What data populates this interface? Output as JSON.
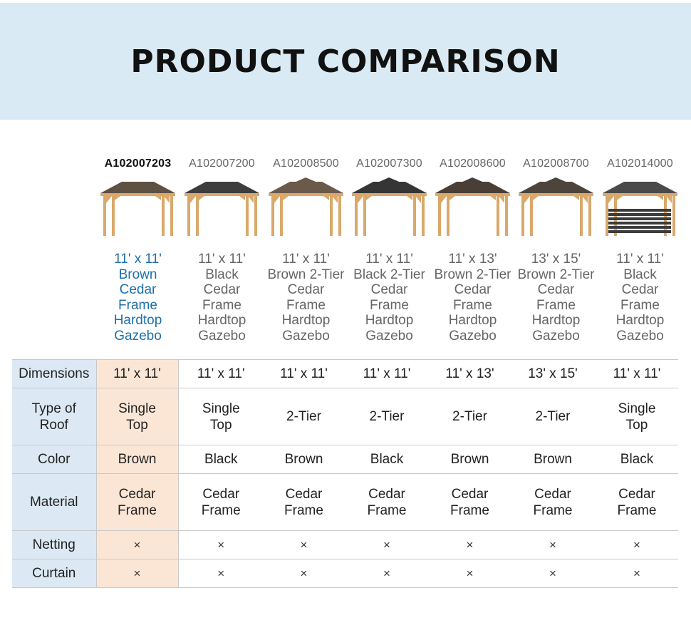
{
  "header": {
    "title": "PRODUCT COMPARISON"
  },
  "products": [
    {
      "sku": "A102007203",
      "name": [
        "11' x 11'",
        "Brown",
        "Cedar",
        "Frame",
        "Hardtop",
        "Gazebo"
      ],
      "roof": "#5e5043",
      "tier": 1
    },
    {
      "sku": "A102007200",
      "name": [
        "11' x 11'",
        "Black",
        "Cedar",
        "Frame",
        "Hardtop",
        "Gazebo"
      ],
      "roof": "#3d3d3d",
      "tier": 1
    },
    {
      "sku": "A102008500",
      "name": [
        "11' x 11'",
        "Brown 2-Tier",
        "Cedar",
        "Frame",
        "Hardtop",
        "Gazebo"
      ],
      "roof": "#6b5a49",
      "tier": 2
    },
    {
      "sku": "A102007300",
      "name": [
        "11' x 11'",
        "Black 2-Tier",
        "Cedar",
        "Frame",
        "Hardtop",
        "Gazebo"
      ],
      "roof": "#353535",
      "tier": 2
    },
    {
      "sku": "A102008600",
      "name": [
        "11' x 13'",
        "Brown 2-Tier",
        "Cedar",
        "Frame",
        "Hardtop",
        "Gazebo"
      ],
      "roof": "#4a3f36",
      "tier": 2
    },
    {
      "sku": "A102008700",
      "name": [
        "13' x 15'",
        "Brown 2-Tier",
        "Cedar",
        "Frame",
        "Hardtop",
        "Gazebo"
      ],
      "roof": "#4d443b",
      "tier": 2
    },
    {
      "sku": "A102014000",
      "name": [
        "11' x 11'",
        "Black",
        "Cedar",
        "Frame",
        "Hardtop",
        "Gazebo"
      ],
      "roof": "#4a4a4a",
      "tier": 1
    }
  ],
  "table": {
    "rows": [
      {
        "label": [
          "Dimensions"
        ],
        "values": [
          [
            "11' x 11'"
          ],
          [
            "11' x 11'"
          ],
          [
            "11' x 11'"
          ],
          [
            "11' x 11'"
          ],
          [
            "11' x 13'"
          ],
          [
            "13' x 15'"
          ],
          [
            "11' x 11'"
          ]
        ]
      },
      {
        "label": [
          "Type of",
          "Roof"
        ],
        "values": [
          [
            "Single",
            "Top"
          ],
          [
            "Single",
            "Top"
          ],
          [
            "2-Tier"
          ],
          [
            "2-Tier"
          ],
          [
            "2-Tier"
          ],
          [
            "2-Tier"
          ],
          [
            "Single",
            "Top"
          ]
        ]
      },
      {
        "label": [
          "Color"
        ],
        "values": [
          [
            "Brown"
          ],
          [
            "Black"
          ],
          [
            "Brown"
          ],
          [
            "Black"
          ],
          [
            "Brown"
          ],
          [
            "Brown"
          ],
          [
            "Black"
          ]
        ]
      },
      {
        "label": [
          "Material"
        ],
        "values": [
          [
            "Cedar",
            "Frame"
          ],
          [
            "Cedar",
            "Frame"
          ],
          [
            "Cedar",
            "Frame"
          ],
          [
            "Cedar",
            "Frame"
          ],
          [
            "Cedar",
            "Frame"
          ],
          [
            "Cedar",
            "Frame"
          ],
          [
            "Cedar",
            "Frame"
          ]
        ]
      },
      {
        "label": [
          "Netting"
        ],
        "values": [
          [
            "×"
          ],
          [
            "×"
          ],
          [
            "×"
          ],
          [
            "×"
          ],
          [
            "×"
          ],
          [
            "×"
          ],
          [
            "×"
          ]
        ]
      },
      {
        "label": [
          "Curtain"
        ],
        "values": [
          [
            "×"
          ],
          [
            "×"
          ],
          [
            "×"
          ],
          [
            "×"
          ],
          [
            "×"
          ],
          [
            "×"
          ],
          [
            "×"
          ]
        ]
      }
    ]
  },
  "colors": {
    "banner": "#daeaf4",
    "label_cell": "#dce9f4",
    "highlight_cell": "#fbe6d6",
    "active_name": "#1e6fa8",
    "wood": "#d9a86a"
  }
}
